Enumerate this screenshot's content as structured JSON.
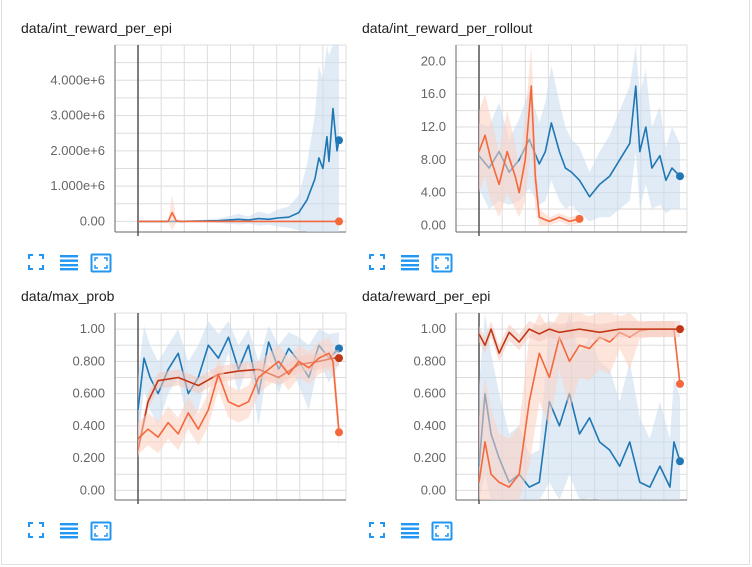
{
  "colors": {
    "blue": "#1f77b4",
    "blue_light": "#c6dbef",
    "orange": "#f4683c",
    "orange_light": "#fdd0bf",
    "red": "#c23616",
    "red_light": "#f2c9bd",
    "grid": "#dddddd",
    "axis": "#666666",
    "accent": "#2196f3"
  },
  "toolbar": {
    "icons": [
      "fit-to-screen-icon",
      "list-icon",
      "fit-domain-icon"
    ]
  },
  "chart_data": [
    {
      "type": "line",
      "title": "data/int_reward_per_epi",
      "ylim": [
        -300000,
        5000000
      ],
      "yticks": [
        0,
        1000000,
        2000000,
        3000000,
        4000000
      ],
      "ytick_labels": [
        "0.00",
        "1.000e+6",
        "2.000e+6",
        "3.000e+6",
        "4.000e+6"
      ],
      "grid": true,
      "series": [
        {
          "color_key": "blue",
          "x": [
            0,
            0.2,
            0.4,
            0.5,
            0.55,
            0.6,
            0.65,
            0.7,
            0.75,
            0.8,
            0.84,
            0.88,
            0.9,
            0.92,
            0.94,
            0.95,
            0.97,
            0.99,
            1.0
          ],
          "values": [
            0,
            0,
            20000,
            60000,
            40000,
            80000,
            60000,
            100000,
            120000,
            250000,
            600000,
            1200000,
            1800000,
            1500000,
            2400000,
            1700000,
            3200000,
            2000000,
            2300000
          ],
          "band": [
            0,
            0,
            60000,
            150000,
            100000,
            200000,
            150000,
            250000,
            300000,
            500000,
            1000000,
            1800000,
            2600000,
            2500000,
            3500000,
            3000000,
            4600000,
            3800000,
            3500000
          ]
        },
        {
          "color_key": "orange",
          "x": [
            0,
            0.15,
            0.17,
            0.19,
            0.21,
            0.4,
            1.0
          ],
          "values": [
            0,
            0,
            250000,
            20000,
            0,
            0,
            0
          ],
          "band": [
            0,
            0,
            500000,
            50000,
            0,
            0,
            0
          ]
        }
      ]
    },
    {
      "type": "line",
      "title": "data/int_reward_per_rollout",
      "ylim": [
        -0.8,
        22
      ],
      "yticks": [
        0,
        4,
        8,
        12,
        16,
        20
      ],
      "ytick_labels": [
        "0.00",
        "4.00",
        "8.00",
        "12.0",
        "16.0",
        "20.0"
      ],
      "grid": true,
      "series": [
        {
          "color_key": "blue",
          "x": [
            0,
            0.05,
            0.1,
            0.15,
            0.2,
            0.25,
            0.3,
            0.33,
            0.36,
            0.4,
            0.43,
            0.46,
            0.5,
            0.55,
            0.6,
            0.65,
            0.7,
            0.75,
            0.78,
            0.8,
            0.83,
            0.86,
            0.9,
            0.93,
            0.96,
            1.0
          ],
          "values": [
            8.5,
            7,
            9,
            6.5,
            8,
            10.5,
            7.5,
            9,
            12.5,
            9,
            7,
            6.5,
            5.5,
            3.5,
            5,
            6,
            8,
            10,
            17,
            9,
            12,
            7,
            8.5,
            5.5,
            7,
            6
          ],
          "band": [
            4,
            5,
            6,
            4,
            5,
            6,
            5,
            6,
            7,
            6,
            5,
            4,
            4,
            3,
            4,
            5,
            6,
            7,
            8,
            7,
            7,
            5,
            6,
            4,
            5,
            4
          ]
        },
        {
          "color_key": "orange",
          "x": [
            0,
            0.03,
            0.06,
            0.1,
            0.14,
            0.18,
            0.2,
            0.23,
            0.26,
            0.28,
            0.3,
            0.35,
            0.4,
            0.45,
            0.5
          ],
          "values": [
            9,
            11,
            8,
            5,
            9,
            6,
            4,
            8,
            17,
            6,
            1,
            0.5,
            1,
            0.5,
            0.8
          ],
          "band": [
            5,
            5,
            5,
            4,
            5,
            4,
            3,
            5,
            7,
            4,
            1,
            0.5,
            0.5,
            0.5,
            0.5
          ]
        }
      ]
    },
    {
      "type": "line",
      "title": "data/max_prob",
      "ylim": [
        -0.06,
        1.1
      ],
      "yticks": [
        0,
        0.2,
        0.4,
        0.6,
        0.8,
        1.0
      ],
      "ytick_labels": [
        "0.00",
        "0.200",
        "0.400",
        "0.600",
        "0.800",
        "1.00"
      ],
      "grid": true,
      "series": [
        {
          "color_key": "blue",
          "x": [
            0,
            0.03,
            0.06,
            0.1,
            0.15,
            0.2,
            0.25,
            0.3,
            0.35,
            0.4,
            0.45,
            0.5,
            0.55,
            0.6,
            0.65,
            0.7,
            0.75,
            0.8,
            0.85,
            0.9,
            0.95,
            1.0
          ],
          "values": [
            0.5,
            0.82,
            0.7,
            0.6,
            0.75,
            0.85,
            0.6,
            0.7,
            0.9,
            0.82,
            0.95,
            0.75,
            0.9,
            0.6,
            0.92,
            0.75,
            0.88,
            0.8,
            0.7,
            0.9,
            0.82,
            0.88
          ],
          "band": [
            0.2,
            0.2,
            0.2,
            0.2,
            0.15,
            0.15,
            0.2,
            0.2,
            0.15,
            0.15,
            0.1,
            0.15,
            0.1,
            0.2,
            0.1,
            0.15,
            0.1,
            0.15,
            0.2,
            0.1,
            0.15,
            0.1
          ]
        },
        {
          "color_key": "red",
          "x": [
            0,
            0.05,
            0.1,
            0.2,
            0.3,
            0.4,
            0.5,
            0.6,
            0.7,
            0.8,
            0.9,
            0.97,
            1.0
          ],
          "values": [
            0.25,
            0.55,
            0.68,
            0.7,
            0.65,
            0.72,
            0.74,
            0.75,
            0.7,
            0.78,
            0.8,
            0.82,
            0.82
          ],
          "band": [
            0.05,
            0.05,
            0.05,
            0.05,
            0.05,
            0.05,
            0.05,
            0.05,
            0.05,
            0.05,
            0.05,
            0.05,
            0.05
          ]
        },
        {
          "color_key": "orange",
          "x": [
            0,
            0.05,
            0.1,
            0.15,
            0.2,
            0.25,
            0.3,
            0.35,
            0.4,
            0.45,
            0.5,
            0.55,
            0.6,
            0.65,
            0.7,
            0.75,
            0.8,
            0.85,
            0.9,
            0.95,
            0.97,
            1.0
          ],
          "values": [
            0.32,
            0.38,
            0.33,
            0.42,
            0.35,
            0.48,
            0.38,
            0.5,
            0.72,
            0.55,
            0.52,
            0.55,
            0.7,
            0.75,
            0.8,
            0.72,
            0.8,
            0.76,
            0.82,
            0.85,
            0.8,
            0.36
          ],
          "band": [
            0.1,
            0.1,
            0.1,
            0.1,
            0.1,
            0.1,
            0.1,
            0.1,
            0.1,
            0.1,
            0.1,
            0.1,
            0.1,
            0.1,
            0.1,
            0.1,
            0.1,
            0.1,
            0.1,
            0.1,
            0.1,
            0.1
          ]
        }
      ]
    },
    {
      "type": "line",
      "title": "data/reward_per_epi",
      "ylim": [
        -0.06,
        1.1
      ],
      "yticks": [
        0,
        0.2,
        0.4,
        0.6,
        0.8,
        1.0
      ],
      "ytick_labels": [
        "0.00",
        "0.200",
        "0.400",
        "0.600",
        "0.800",
        "1.00"
      ],
      "grid": true,
      "series": [
        {
          "color_key": "blue",
          "x": [
            0,
            0.03,
            0.06,
            0.1,
            0.15,
            0.2,
            0.25,
            0.3,
            0.35,
            0.4,
            0.45,
            0.5,
            0.55,
            0.6,
            0.65,
            0.7,
            0.75,
            0.8,
            0.85,
            0.9,
            0.95,
            0.97,
            1.0
          ],
          "values": [
            0.15,
            0.6,
            0.35,
            0.2,
            0.05,
            0.1,
            0.02,
            0.05,
            0.55,
            0.4,
            0.6,
            0.35,
            0.45,
            0.3,
            0.25,
            0.15,
            0.3,
            0.05,
            0.02,
            0.15,
            0.02,
            0.3,
            0.18
          ],
          "band": [
            0.5,
            0.5,
            0.5,
            0.4,
            0.3,
            0.3,
            0.2,
            0.2,
            0.5,
            0.5,
            0.5,
            0.5,
            0.5,
            0.5,
            0.5,
            0.4,
            0.5,
            0.4,
            0.3,
            0.4,
            0.3,
            0.4,
            0.4
          ]
        },
        {
          "color_key": "orange",
          "x": [
            0,
            0.03,
            0.06,
            0.1,
            0.15,
            0.2,
            0.25,
            0.3,
            0.35,
            0.4,
            0.45,
            0.5,
            0.55,
            0.6,
            0.65,
            0.7,
            0.75,
            0.8,
            0.85,
            0.9,
            0.95,
            0.97,
            1.0
          ],
          "values": [
            0.05,
            0.3,
            0.1,
            0.05,
            0.02,
            0.1,
            0.55,
            0.85,
            0.7,
            0.95,
            0.8,
            0.9,
            0.88,
            0.95,
            0.92,
            0.98,
            0.95,
            0.99,
            1.0,
            1.0,
            1.0,
            1.0,
            0.66
          ],
          "band": [
            0.4,
            0.4,
            0.4,
            0.3,
            0.3,
            0.3,
            0.4,
            0.3,
            0.3,
            0.2,
            0.3,
            0.2,
            0.2,
            0.2,
            0.2,
            0.1,
            0.2,
            0.05,
            0.05,
            0.05,
            0.05,
            0.05,
            0.05
          ]
        },
        {
          "color_key": "red",
          "x": [
            0,
            0.03,
            0.06,
            0.1,
            0.15,
            0.2,
            0.25,
            0.3,
            0.35,
            0.4,
            0.5,
            0.6,
            0.7,
            0.8,
            0.9,
            1.0
          ],
          "values": [
            0.97,
            0.9,
            1.0,
            0.85,
            0.98,
            0.92,
            1.0,
            0.97,
            1.0,
            0.98,
            1.0,
            0.98,
            1.0,
            1.0,
            1.0,
            1.0
          ],
          "band": [
            0.05,
            0.05,
            0.05,
            0.05,
            0.05,
            0.05,
            0.05,
            0.05,
            0.05,
            0.05,
            0.05,
            0.05,
            0.05,
            0.05,
            0.05,
            0.05
          ]
        }
      ]
    }
  ]
}
